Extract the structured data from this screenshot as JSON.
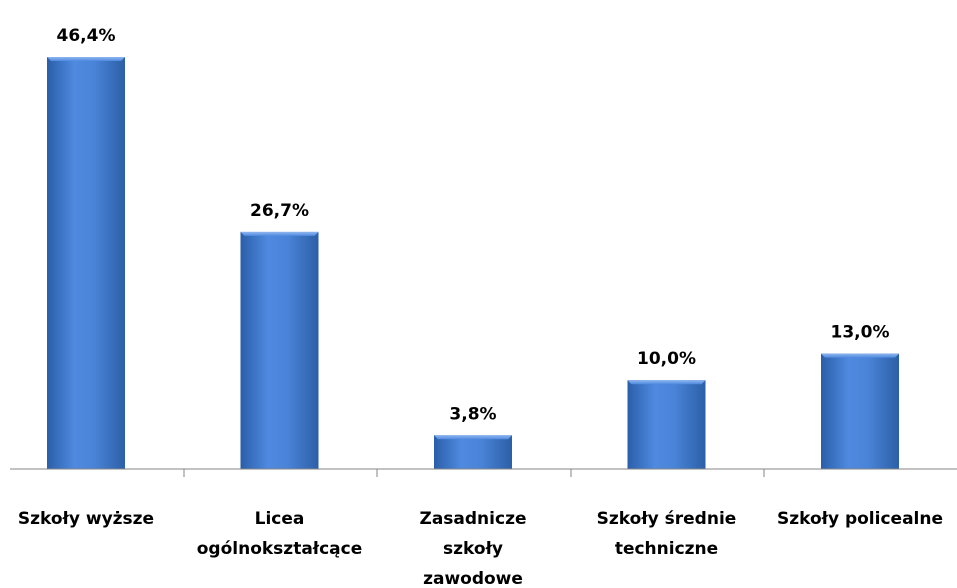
{
  "chart_data": {
    "type": "bar",
    "categories": [
      [
        "Szkoły wyższe"
      ],
      [
        "Licea",
        "ogólnokształcące"
      ],
      [
        "Zasadnicze",
        "szkoły",
        "zawodowe"
      ],
      [
        "Szkoły średnie",
        "techniczne"
      ],
      [
        "Szkoły policealne"
      ]
    ],
    "values": [
      46.4,
      26.7,
      3.8,
      10.0,
      13.0
    ],
    "data_labels": [
      "46,4%",
      "26,7%",
      "3,8%",
      "10,0%",
      "13,0%"
    ],
    "ylim": [
      0,
      50
    ],
    "grid": false,
    "bar_color": "#3f78c9"
  }
}
